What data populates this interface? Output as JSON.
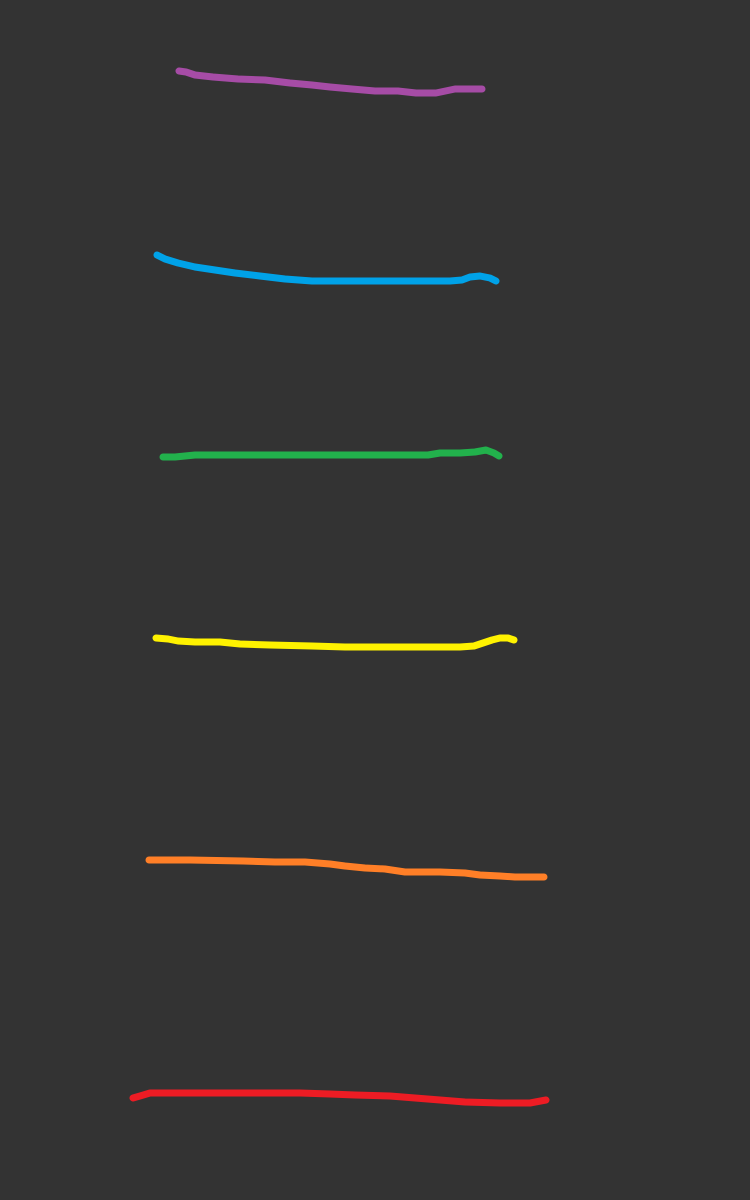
{
  "canvas": {
    "background": "#333333"
  },
  "strokes": [
    {
      "name": "purple-stroke",
      "color": "#A64CA6"
    },
    {
      "name": "blue-stroke",
      "color": "#00A2E8"
    },
    {
      "name": "green-stroke",
      "color": "#22B14C"
    },
    {
      "name": "yellow-stroke",
      "color": "#FFF200"
    },
    {
      "name": "orange-stroke",
      "color": "#FF7F27"
    },
    {
      "name": "red-stroke",
      "color": "#ED1C24"
    }
  ]
}
